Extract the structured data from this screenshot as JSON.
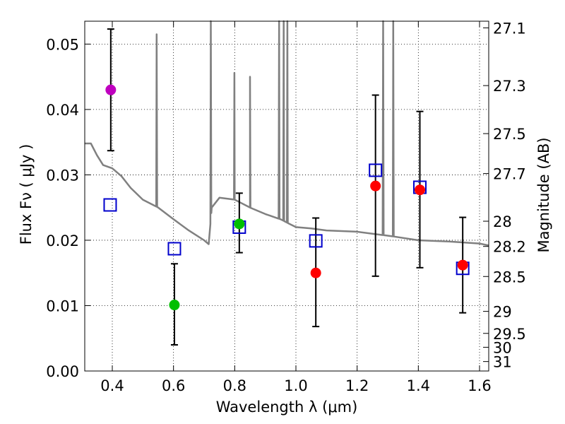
{
  "chart_data": {
    "type": "scatter",
    "xlabel": "Wavelength  λ (μm)",
    "ylabel": "Flux  Fν  ( μJy )",
    "ylabel_right": "Magnitude (AB)",
    "xlim": [
      0.31,
      1.63
    ],
    "ylim": [
      0.0,
      0.0535
    ],
    "grid": true,
    "x_ticks": [
      0.4,
      0.6,
      0.8,
      1.0,
      1.2,
      1.4,
      1.6
    ],
    "x_tick_labels": [
      "0.4",
      "0.6",
      "0.8",
      "1.0",
      "1.2",
      "1.4",
      "1.6"
    ],
    "y_ticks": [
      0.0,
      0.01,
      0.02,
      0.03,
      0.04,
      0.05
    ],
    "y_tick_labels": [
      "0.00",
      "0.01",
      "0.02",
      "0.03",
      "0.04",
      "0.05"
    ],
    "right_ticks": [
      {
        "label": "27.1",
        "mag": 27.1
      },
      {
        "label": "27.3",
        "mag": 27.3
      },
      {
        "label": "27.5",
        "mag": 27.5
      },
      {
        "label": "27.7",
        "mag": 27.7
      },
      {
        "label": "28",
        "mag": 28.0
      },
      {
        "label": "28.2",
        "mag": 28.2
      },
      {
        "label": "28.5",
        "mag": 28.5
      },
      {
        "label": "29",
        "mag": 29.0
      },
      {
        "label": "29.5",
        "mag": 29.5
      },
      {
        "label": "30",
        "mag": 30.0
      },
      {
        "label": "31",
        "mag": 31.0
      }
    ],
    "observed": [
      {
        "x": 0.395,
        "y": 0.043,
        "err_low": 0.0337,
        "err_high": 0.0523,
        "color": "#bf00bf"
      },
      {
        "x": 0.603,
        "y": 0.0101,
        "err_low": 0.004,
        "err_high": 0.0164,
        "color": "#00bf00"
      },
      {
        "x": 0.815,
        "y": 0.0225,
        "err_low": 0.0181,
        "err_high": 0.0272,
        "color": "#00bf00"
      },
      {
        "x": 1.065,
        "y": 0.015,
        "err_low": 0.0068,
        "err_high": 0.0234,
        "color": "#ff0000"
      },
      {
        "x": 1.26,
        "y": 0.0283,
        "err_low": 0.0145,
        "err_high": 0.0422,
        "color": "#ff0000"
      },
      {
        "x": 1.405,
        "y": 0.0277,
        "err_low": 0.0158,
        "err_high": 0.0397,
        "color": "#ff0000"
      },
      {
        "x": 1.545,
        "y": 0.0162,
        "err_low": 0.0089,
        "err_high": 0.0235,
        "color": "#ff0000"
      }
    ],
    "model_photometry": {
      "color": "#0000cc",
      "points": [
        {
          "x": 0.393,
          "y": 0.0254
        },
        {
          "x": 0.603,
          "y": 0.0187
        },
        {
          "x": 0.815,
          "y": 0.022
        },
        {
          "x": 1.065,
          "y": 0.0199
        },
        {
          "x": 1.26,
          "y": 0.0307
        },
        {
          "x": 1.405,
          "y": 0.0281
        },
        {
          "x": 1.545,
          "y": 0.0157
        }
      ]
    },
    "model_spectrum": {
      "color": "#808080",
      "x": [
        0.31,
        0.33,
        0.35,
        0.37,
        0.4,
        0.43,
        0.46,
        0.5,
        0.55,
        0.6,
        0.65,
        0.7,
        0.715,
        0.725,
        0.75,
        0.8,
        0.85,
        0.9,
        0.95,
        1.0,
        1.05,
        1.1,
        1.2,
        1.3,
        1.4,
        1.5,
        1.6,
        1.63
      ],
      "y": [
        0.0348,
        0.0348,
        0.033,
        0.0315,
        0.031,
        0.0298,
        0.028,
        0.0262,
        0.025,
        0.0232,
        0.0215,
        0.02,
        0.0194,
        0.025,
        0.0265,
        0.0262,
        0.025,
        0.024,
        0.0232,
        0.022,
        0.0218,
        0.0215,
        0.0213,
        0.0207,
        0.02,
        0.0198,
        0.0195,
        0.0192
      ],
      "spikes": [
        {
          "x": 0.545,
          "peak": 0.0515,
          "base": 0.025
        },
        {
          "x": 0.722,
          "peak": 0.0535,
          "base": 0.021
        },
        {
          "x": 0.799,
          "peak": 0.0456,
          "base": 0.0262
        },
        {
          "x": 0.85,
          "peak": 0.045,
          "base": 0.0252
        },
        {
          "x": 0.945,
          "peak": 0.0535,
          "base": 0.0232
        },
        {
          "x": 0.96,
          "peak": 0.0535,
          "base": 0.023
        },
        {
          "x": 0.972,
          "peak": 0.0535,
          "base": 0.0229
        },
        {
          "x": 1.285,
          "peak": 0.0535,
          "base": 0.0209
        },
        {
          "x": 1.318,
          "peak": 0.0535,
          "base": 0.0208
        }
      ]
    }
  }
}
